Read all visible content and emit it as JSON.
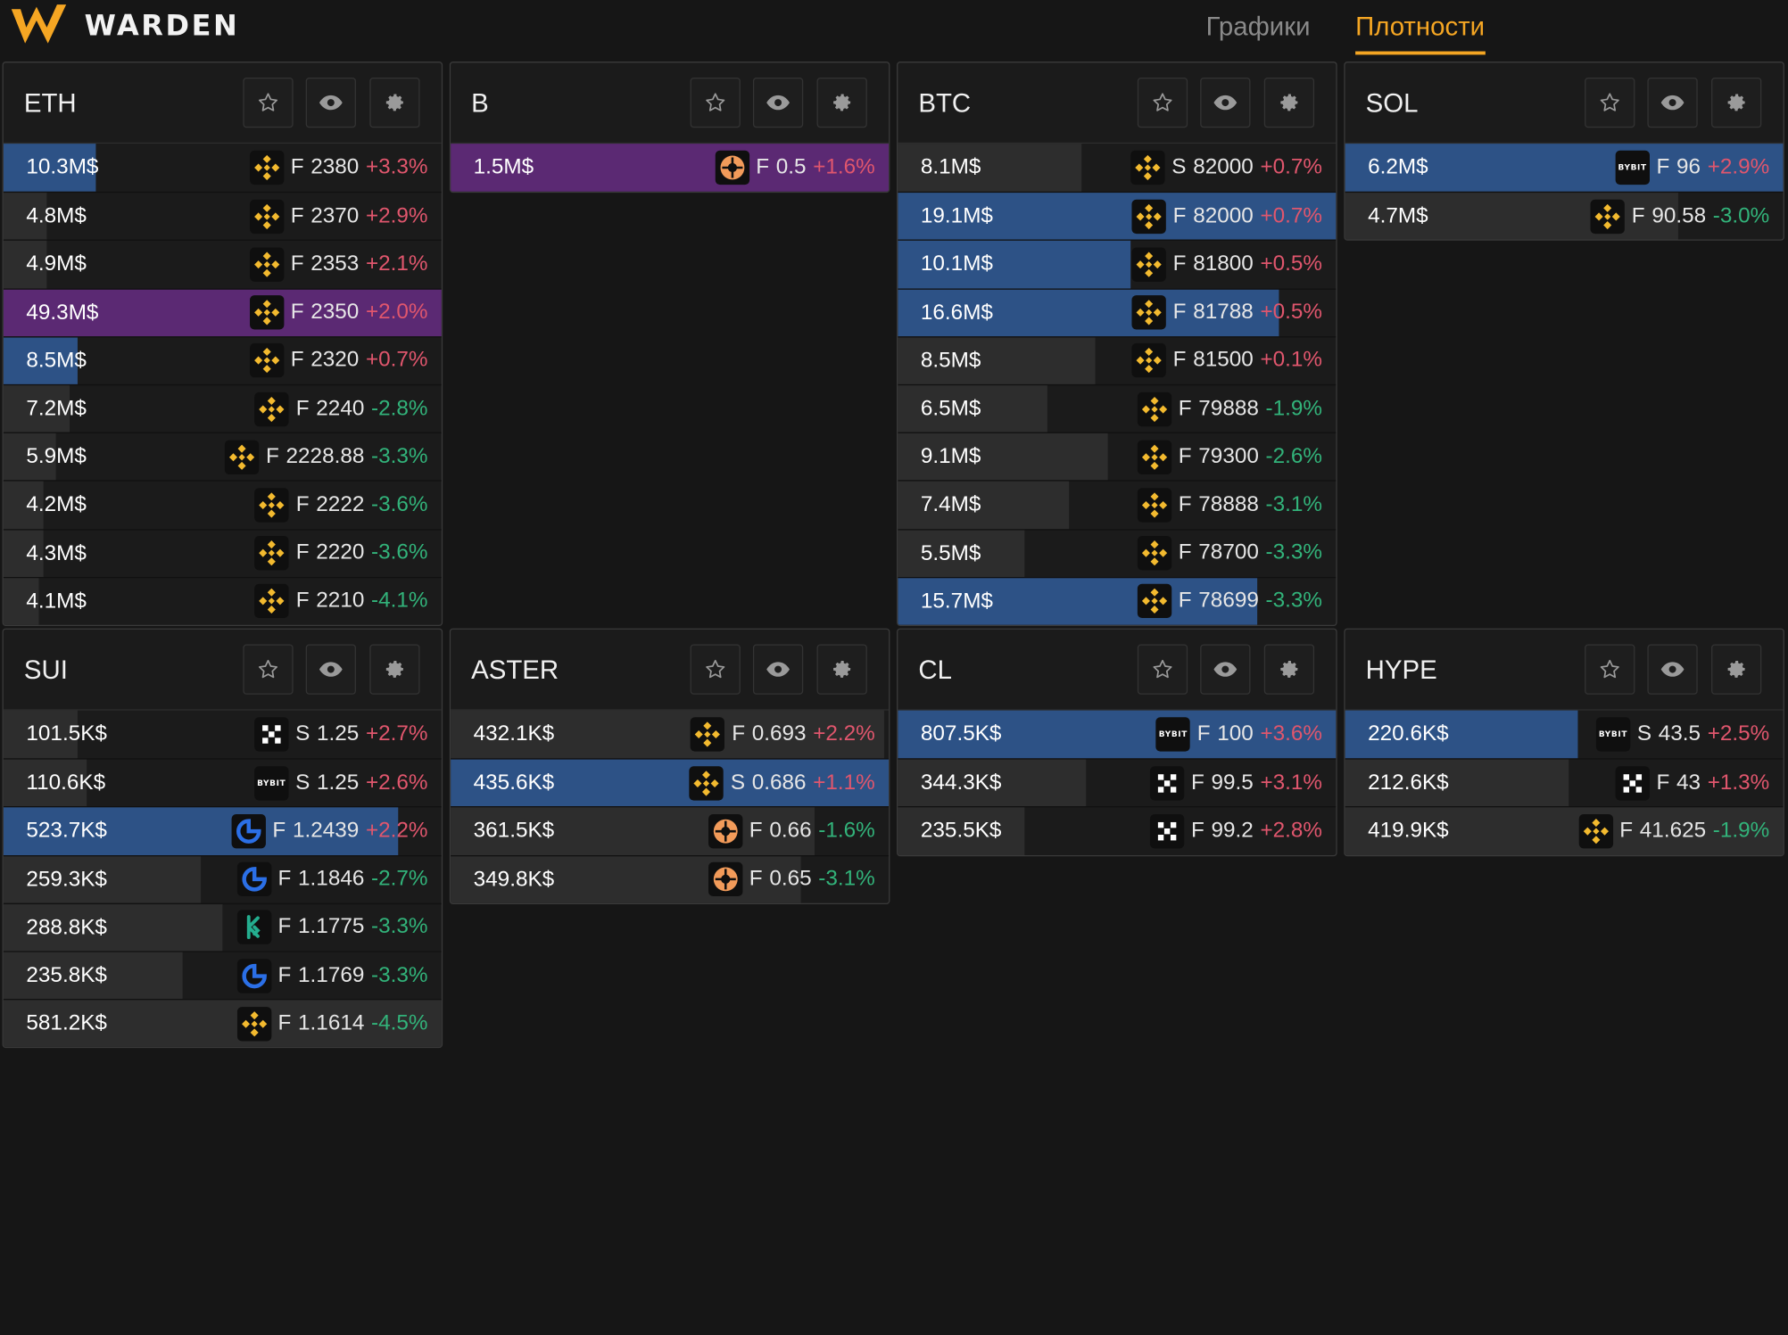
{
  "app": {
    "brand": "WARDEN"
  },
  "nav": [
    {
      "label": "Графики",
      "active": false
    },
    {
      "label": "Плотности",
      "active": true
    }
  ],
  "panels": [
    {
      "ticker": "ETH",
      "rows": [
        {
          "amount": "10.3M$",
          "exchange": "binance",
          "market": "F",
          "price": "2380",
          "change": "+3.3%",
          "dir": "pos",
          "bar": "b",
          "fill": 0.21
        },
        {
          "amount": "4.8M$",
          "exchange": "binance",
          "market": "F",
          "price": "2370",
          "change": "+2.9%",
          "dir": "pos",
          "bar": "g",
          "fill": 0.1
        },
        {
          "amount": "4.9M$",
          "exchange": "binance",
          "market": "F",
          "price": "2353",
          "change": "+2.1%",
          "dir": "pos",
          "bar": "g",
          "fill": 0.1
        },
        {
          "amount": "49.3M$",
          "exchange": "binance",
          "market": "F",
          "price": "2350",
          "change": "+2.0%",
          "dir": "pos",
          "bar": "p",
          "fill": 1.0
        },
        {
          "amount": "8.5M$",
          "exchange": "binance",
          "market": "F",
          "price": "2320",
          "change": "+0.7%",
          "dir": "pos",
          "bar": "b",
          "fill": 0.17
        },
        {
          "amount": "7.2M$",
          "exchange": "binance",
          "market": "F",
          "price": "2240",
          "change": "-2.8%",
          "dir": "neg",
          "bar": "g",
          "fill": 0.15
        },
        {
          "amount": "5.9M$",
          "exchange": "binance",
          "market": "F",
          "price": "2228.88",
          "change": "-3.3%",
          "dir": "neg",
          "bar": "g",
          "fill": 0.12
        },
        {
          "amount": "4.2M$",
          "exchange": "binance",
          "market": "F",
          "price": "2222",
          "change": "-3.6%",
          "dir": "neg",
          "bar": "g",
          "fill": 0.09
        },
        {
          "amount": "4.3M$",
          "exchange": "binance",
          "market": "F",
          "price": "2220",
          "change": "-3.6%",
          "dir": "neg",
          "bar": "g",
          "fill": 0.09
        },
        {
          "amount": "4.1M$",
          "exchange": "binance",
          "market": "F",
          "price": "2210",
          "change": "-4.1%",
          "dir": "neg",
          "bar": "g",
          "fill": 0.08
        }
      ]
    },
    {
      "ticker": "B",
      "rows": [
        {
          "amount": "1.5M$",
          "exchange": "gate",
          "market": "F",
          "price": "0.5",
          "change": "+1.6%",
          "dir": "pos",
          "bar": "p",
          "fill": 1.0
        }
      ]
    },
    {
      "ticker": "BTC",
      "rows": [
        {
          "amount": "8.1M$",
          "exchange": "binance",
          "market": "S",
          "price": "82000",
          "change": "+0.7%",
          "dir": "pos",
          "bar": "g",
          "fill": 0.42
        },
        {
          "amount": "19.1M$",
          "exchange": "binance",
          "market": "F",
          "price": "82000",
          "change": "+0.7%",
          "dir": "pos",
          "bar": "b",
          "fill": 1.0
        },
        {
          "amount": "10.1M$",
          "exchange": "binance",
          "market": "F",
          "price": "81800",
          "change": "+0.5%",
          "dir": "pos",
          "bar": "b",
          "fill": 0.53
        },
        {
          "amount": "16.6M$",
          "exchange": "binance",
          "market": "F",
          "price": "81788",
          "change": "+0.5%",
          "dir": "pos",
          "bar": "b",
          "fill": 0.87
        },
        {
          "amount": "8.5M$",
          "exchange": "binance",
          "market": "F",
          "price": "81500",
          "change": "+0.1%",
          "dir": "pos",
          "bar": "g",
          "fill": 0.45
        },
        {
          "amount": "6.5M$",
          "exchange": "binance",
          "market": "F",
          "price": "79888",
          "change": "-1.9%",
          "dir": "neg",
          "bar": "g",
          "fill": 0.34
        },
        {
          "amount": "9.1M$",
          "exchange": "binance",
          "market": "F",
          "price": "79300",
          "change": "-2.6%",
          "dir": "neg",
          "bar": "g",
          "fill": 0.48
        },
        {
          "amount": "7.4M$",
          "exchange": "binance",
          "market": "F",
          "price": "78888",
          "change": "-3.1%",
          "dir": "neg",
          "bar": "g",
          "fill": 0.39
        },
        {
          "amount": "5.5M$",
          "exchange": "binance",
          "market": "F",
          "price": "78700",
          "change": "-3.3%",
          "dir": "neg",
          "bar": "g",
          "fill": 0.29
        },
        {
          "amount": "15.7M$",
          "exchange": "binance",
          "market": "F",
          "price": "78699",
          "change": "-3.3%",
          "dir": "neg",
          "bar": "b",
          "fill": 0.82
        }
      ]
    },
    {
      "ticker": "SOL",
      "rows": [
        {
          "amount": "6.2M$",
          "exchange": "bybit",
          "market": "F",
          "price": "96",
          "change": "+2.9%",
          "dir": "pos",
          "bar": "b",
          "fill": 1.0
        },
        {
          "amount": "4.7M$",
          "exchange": "binance",
          "market": "F",
          "price": "90.58",
          "change": "-3.0%",
          "dir": "neg",
          "bar": "g",
          "fill": 0.76
        }
      ]
    },
    {
      "ticker": "SUI",
      "rows": [
        {
          "amount": "101.5K$",
          "exchange": "okx",
          "market": "S",
          "price": "1.25",
          "change": "+2.7%",
          "dir": "pos",
          "bar": "g",
          "fill": 0.17
        },
        {
          "amount": "110.6K$",
          "exchange": "bybit",
          "market": "S",
          "price": "1.25",
          "change": "+2.6%",
          "dir": "pos",
          "bar": "g",
          "fill": 0.19
        },
        {
          "amount": "523.7K$",
          "exchange": "gateio",
          "market": "F",
          "price": "1.2439",
          "change": "+2.2%",
          "dir": "pos",
          "bar": "b",
          "fill": 0.9
        },
        {
          "amount": "259.3K$",
          "exchange": "gateio",
          "market": "F",
          "price": "1.1846",
          "change": "-2.7%",
          "dir": "neg",
          "bar": "g",
          "fill": 0.45
        },
        {
          "amount": "288.8K$",
          "exchange": "kucoin",
          "market": "F",
          "price": "1.1775",
          "change": "-3.3%",
          "dir": "neg",
          "bar": "g",
          "fill": 0.5
        },
        {
          "amount": "235.8K$",
          "exchange": "gateio",
          "market": "F",
          "price": "1.1769",
          "change": "-3.3%",
          "dir": "neg",
          "bar": "g",
          "fill": 0.41
        },
        {
          "amount": "581.2K$",
          "exchange": "binance",
          "market": "F",
          "price": "1.1614",
          "change": "-4.5%",
          "dir": "neg",
          "bar": "g",
          "fill": 1.0
        }
      ]
    },
    {
      "ticker": "ASTER",
      "rows": [
        {
          "amount": "432.1K$",
          "exchange": "binance",
          "market": "F",
          "price": "0.693",
          "change": "+2.2%",
          "dir": "pos",
          "bar": "g",
          "fill": 0.99
        },
        {
          "amount": "435.6K$",
          "exchange": "binance",
          "market": "S",
          "price": "0.686",
          "change": "+1.1%",
          "dir": "pos",
          "bar": "b",
          "fill": 1.0
        },
        {
          "amount": "361.5K$",
          "exchange": "gate",
          "market": "F",
          "price": "0.66",
          "change": "-1.6%",
          "dir": "neg",
          "bar": "g",
          "fill": 0.83
        },
        {
          "amount": "349.8K$",
          "exchange": "gate",
          "market": "F",
          "price": "0.65",
          "change": "-3.1%",
          "dir": "neg",
          "bar": "g",
          "fill": 0.8
        }
      ]
    },
    {
      "ticker": "CL",
      "rows": [
        {
          "amount": "807.5K$",
          "exchange": "bybit",
          "market": "F",
          "price": "100",
          "change": "+3.6%",
          "dir": "pos",
          "bar": "b",
          "fill": 1.0
        },
        {
          "amount": "344.3K$",
          "exchange": "okx",
          "market": "F",
          "price": "99.5",
          "change": "+3.1%",
          "dir": "pos",
          "bar": "g",
          "fill": 0.43
        },
        {
          "amount": "235.5K$",
          "exchange": "okx",
          "market": "F",
          "price": "99.2",
          "change": "+2.8%",
          "dir": "pos",
          "bar": "g",
          "fill": 0.29
        }
      ]
    },
    {
      "ticker": "HYPE",
      "rows": [
        {
          "amount": "220.6K$",
          "exchange": "bybit",
          "market": "S",
          "price": "43.5",
          "change": "+2.5%",
          "dir": "pos",
          "bar": "b",
          "fill": 0.53
        },
        {
          "amount": "212.6K$",
          "exchange": "okx",
          "market": "F",
          "price": "43",
          "change": "+1.3%",
          "dir": "pos",
          "bar": "g",
          "fill": 0.51
        },
        {
          "amount": "419.9K$",
          "exchange": "binance",
          "market": "F",
          "price": "41.625",
          "change": "-1.9%",
          "dir": "neg",
          "bar": "g",
          "fill": 1.0
        }
      ]
    }
  ],
  "colors": {
    "accent": "#f5a623",
    "bar_blue": "#2d5286",
    "bar_purple": "#5b2973",
    "bar_gray": "#2d2d2d",
    "positive": "#e0566d",
    "negative": "#32b37a"
  },
  "icons": {
    "favorite": "star-icon",
    "visibility": "eye-icon",
    "settings": "gear-icon"
  }
}
